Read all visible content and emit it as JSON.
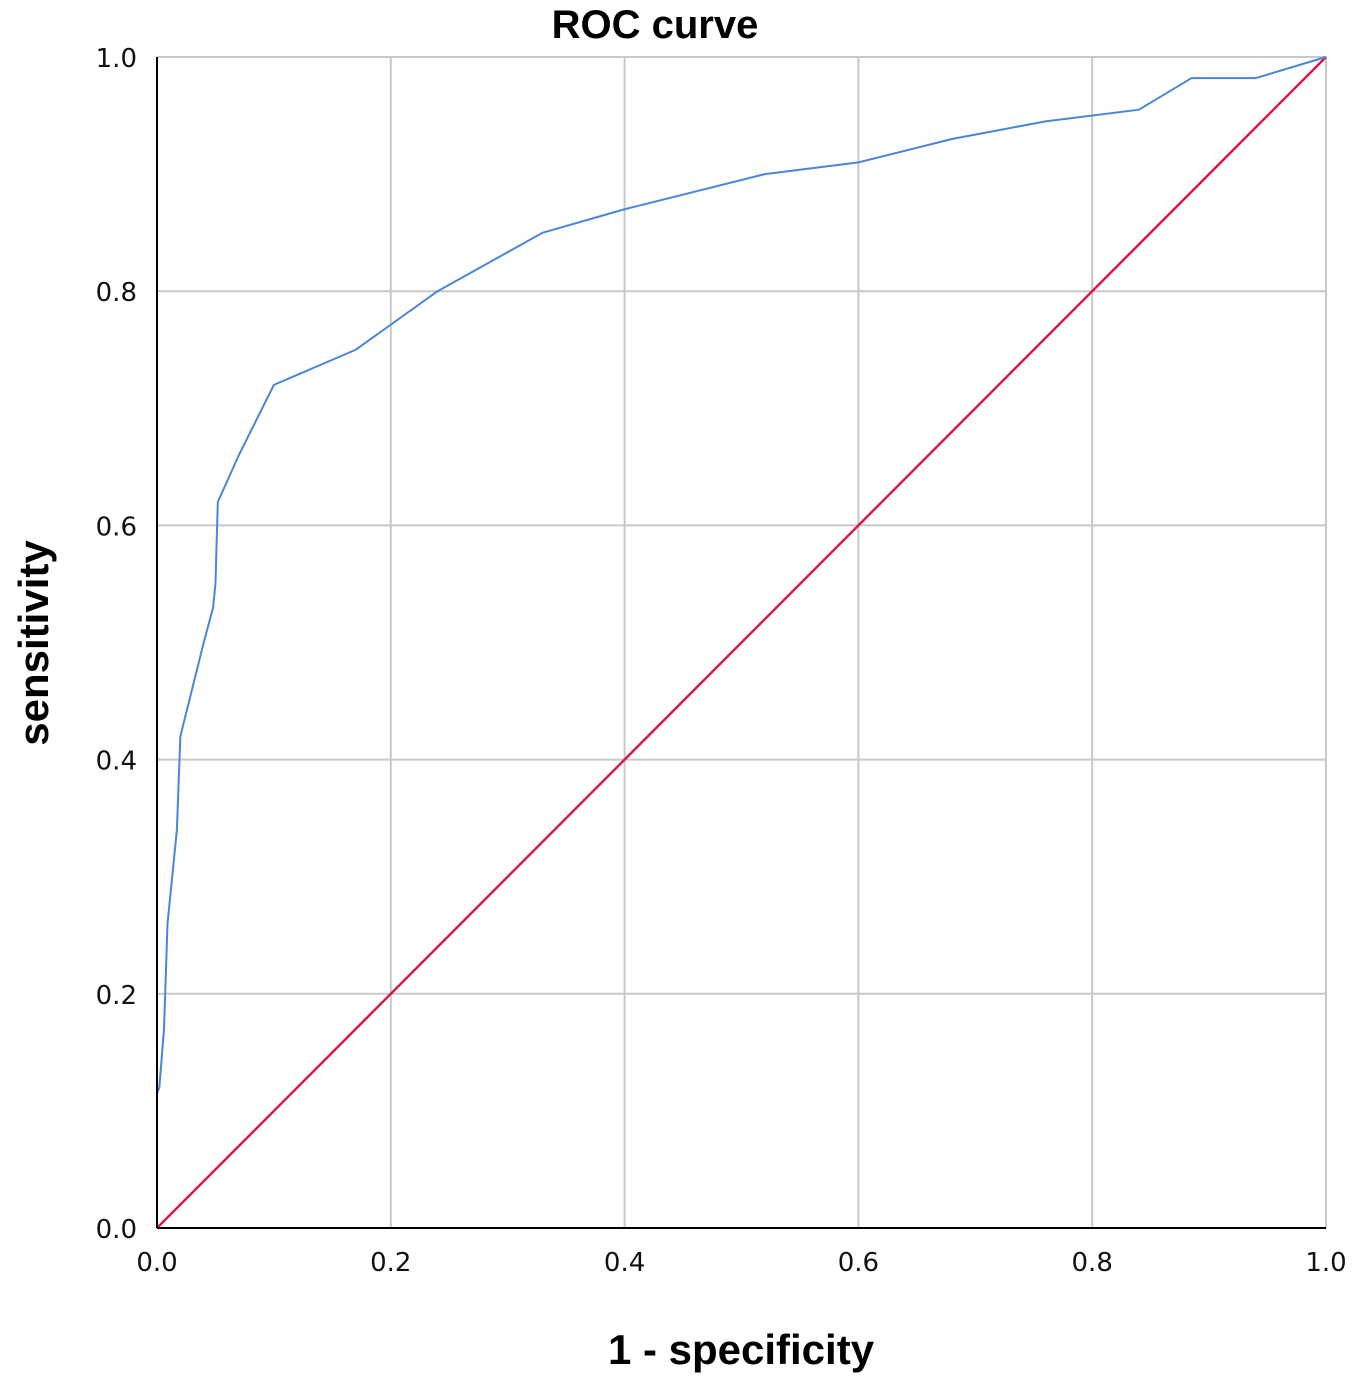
{
  "chart_data": {
    "type": "line",
    "title": "ROC curve",
    "xlabel": "1 - specificity",
    "ylabel": "sensitivity",
    "xlim": [
      0,
      1
    ],
    "ylim": [
      0,
      1
    ],
    "grid": true,
    "x_ticks": [
      "0.0",
      "0.2",
      "0.4",
      "0.6",
      "0.8",
      "1.0"
    ],
    "y_ticks": [
      "0.0",
      "0.2",
      "0.4",
      "0.6",
      "0.8",
      "1.0"
    ],
    "series": [
      {
        "color": "#4a86d8",
        "x": [
          0.0,
          0.0,
          0.002,
          0.006,
          0.009,
          0.013,
          0.017,
          0.02,
          0.03,
          0.04,
          0.048,
          0.05,
          0.052,
          0.07,
          0.1,
          0.17,
          0.24,
          0.33,
          0.4,
          0.46,
          0.52,
          0.6,
          0.68,
          0.76,
          0.84,
          0.885,
          0.94,
          1.0
        ],
        "y": [
          0.0,
          0.115,
          0.12,
          0.17,
          0.26,
          0.3,
          0.34,
          0.42,
          0.46,
          0.5,
          0.53,
          0.55,
          0.62,
          0.66,
          0.72,
          0.75,
          0.8,
          0.85,
          0.87,
          0.885,
          0.9,
          0.91,
          0.93,
          0.945,
          0.955,
          0.982,
          0.982,
          1.0
        ]
      },
      {
        "color": "#d81b46",
        "x": [
          0.0,
          1.0
        ],
        "y": [
          0.0,
          1.0
        ]
      }
    ],
    "colors": {
      "grid": "#c8c8c8",
      "axis": "#000000",
      "roc_curve": "#4a86d8",
      "reference_line": "#d81b46"
    }
  }
}
